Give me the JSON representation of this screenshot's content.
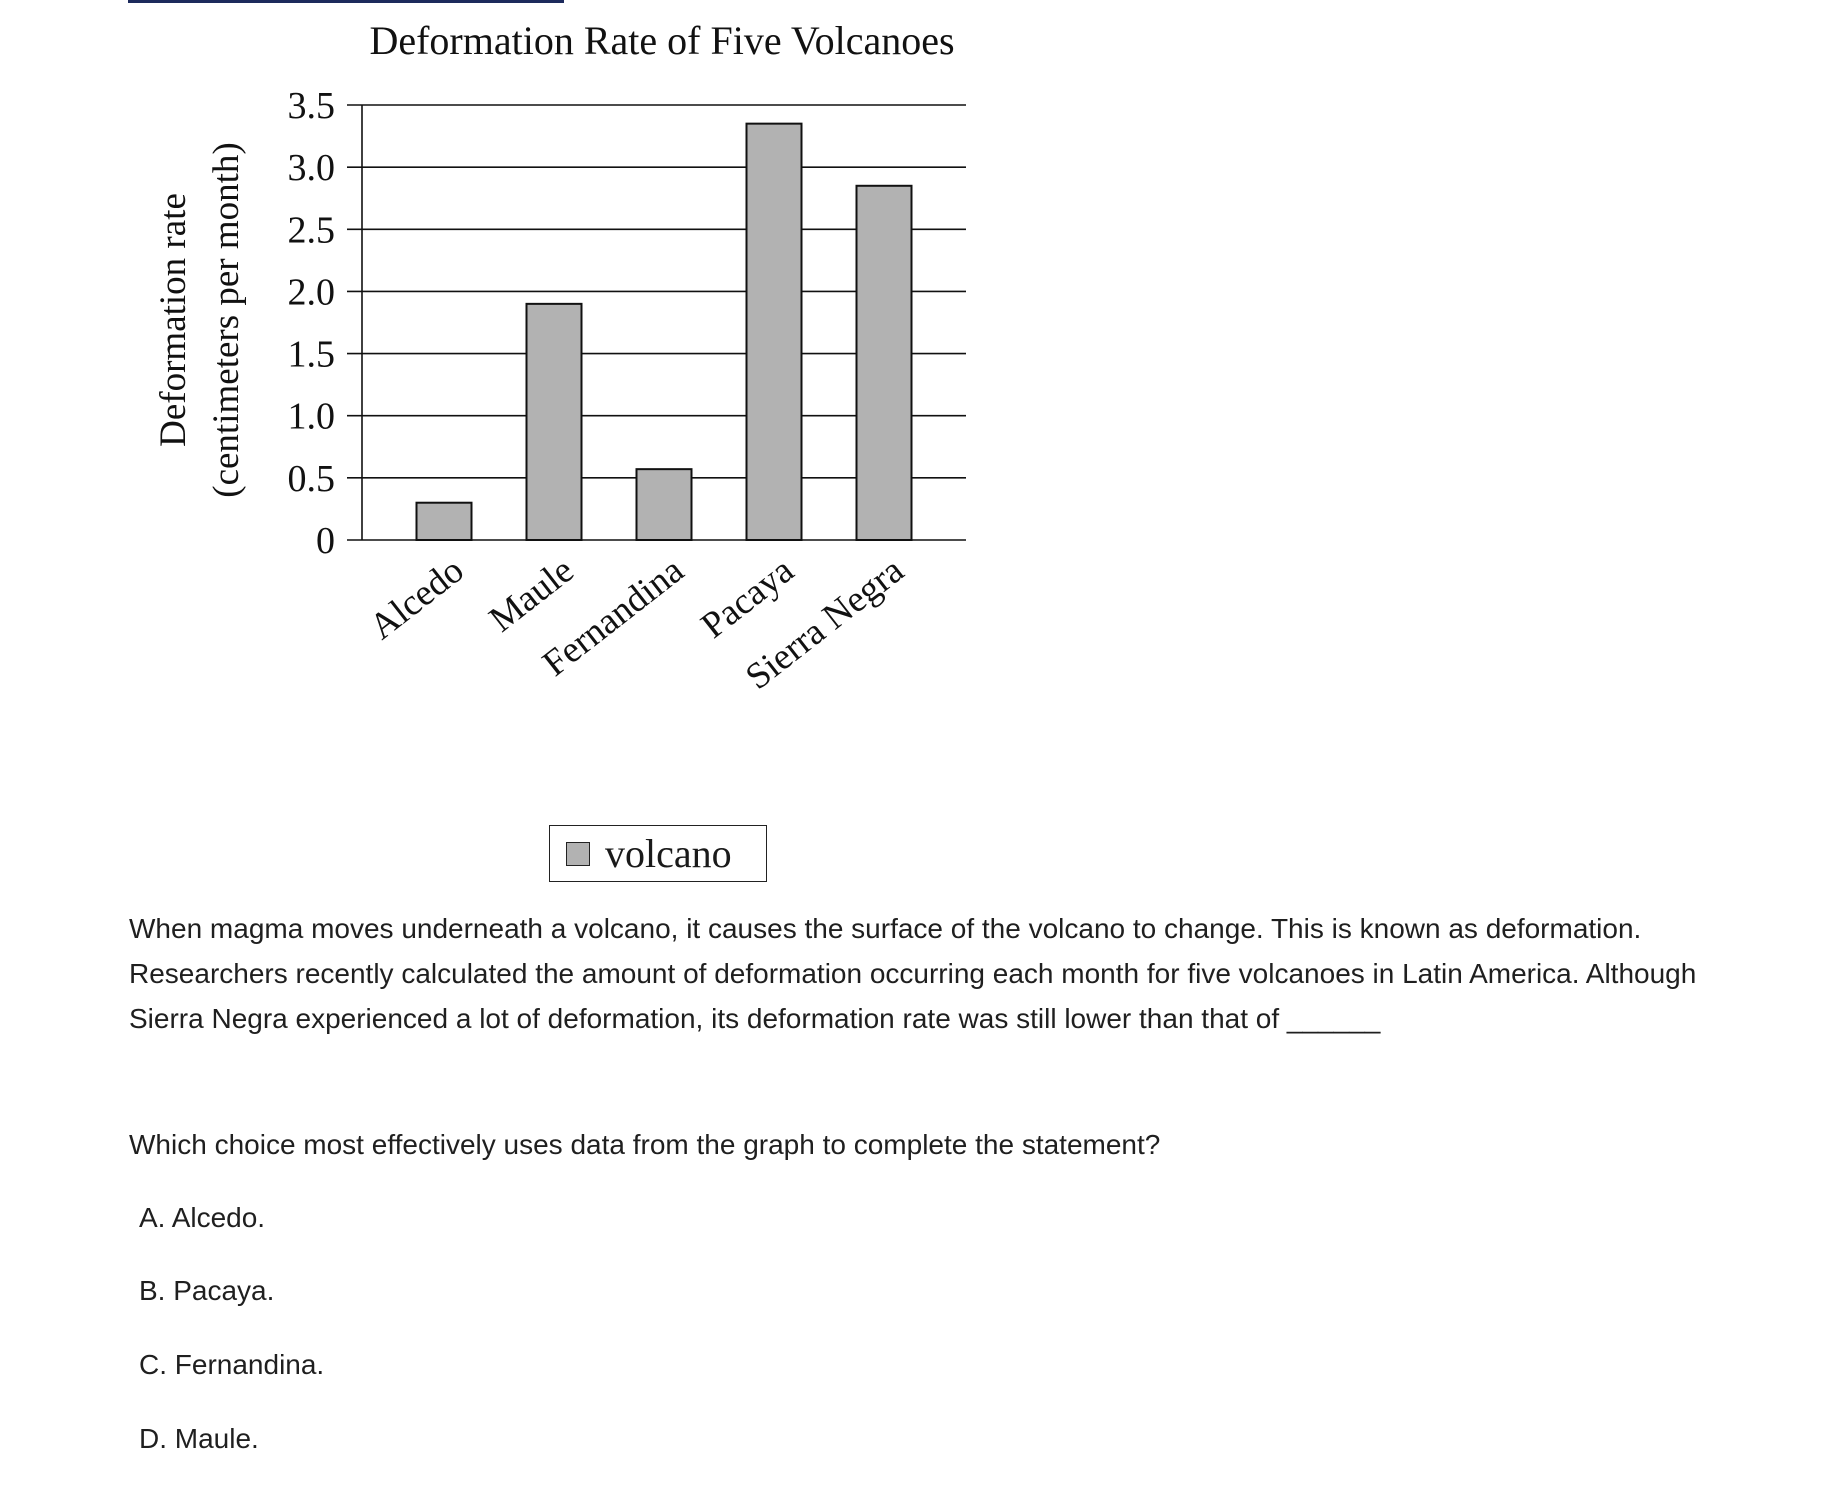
{
  "chart_data": {
    "type": "bar",
    "title": "Deformation Rate of Five Volcanoes",
    "ylabel_line1": "Deformation rate",
    "ylabel_line2": "(centimeters per month)",
    "categories": [
      "Alcedo",
      "Maule",
      "Fernandina",
      "Pacaya",
      "Sierra Negra"
    ],
    "series": [
      {
        "name": "volcano",
        "values": [
          0.3,
          1.9,
          0.57,
          3.35,
          2.85
        ]
      }
    ],
    "yticks": [
      "0",
      "0.5",
      "1.0",
      "1.5",
      "2.0",
      "2.5",
      "3.0",
      "3.5"
    ],
    "ylim": [
      0,
      3.5
    ],
    "grid": true,
    "legend_position": "bottom-center",
    "bar_color": "#b2b2b2"
  },
  "legend": {
    "label": "volcano"
  },
  "passage": "When magma moves underneath a volcano, it causes the surface of the volcano to change. This is known as deformation. Researchers recently calculated the amount of deformation occurring each month for five volcanoes in Latin America. Although Sierra Negra experienced a lot of deformation, its deformation rate was still lower than that of ______",
  "question": "Which choice most effectively uses data from the graph to complete the statement?",
  "choices": [
    "A. Alcedo.",
    "B. Pacaya.",
    "C. Fernandina.",
    "D. Maule."
  ]
}
